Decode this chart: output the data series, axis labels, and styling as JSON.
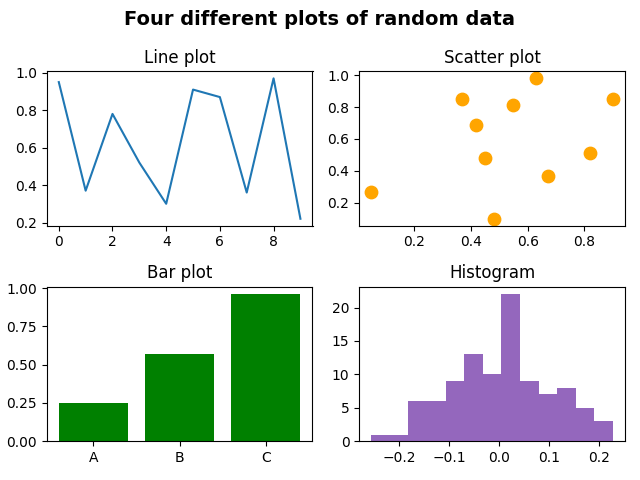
{
  "title": "Four different plots of random data",
  "line_plot": {
    "title": "Line plot",
    "x": [
      0,
      1,
      2,
      3,
      4,
      5,
      6,
      7,
      8,
      9
    ],
    "y": [
      0.95,
      0.37,
      0.78,
      0.52,
      0.3,
      0.91,
      0.87,
      0.36,
      0.97,
      0.22
    ],
    "color": "#1f77b4"
  },
  "scatter_plot": {
    "title": "Scatter plot",
    "x": [
      0.05,
      0.37,
      0.42,
      0.45,
      0.48,
      0.55,
      0.63,
      0.67,
      0.82,
      0.9
    ],
    "y": [
      0.27,
      0.85,
      0.69,
      0.48,
      0.1,
      0.81,
      0.98,
      0.37,
      0.51,
      0.85
    ],
    "color": "orange",
    "marker_size": 80
  },
  "bar_plot": {
    "title": "Bar plot",
    "categories": [
      "A",
      "B",
      "C"
    ],
    "values": [
      0.25,
      0.57,
      0.96
    ],
    "color": "green"
  },
  "histogram": {
    "title": "Histogram",
    "color": "#9467bd",
    "seed": 0,
    "n_samples": 100,
    "bins": 13,
    "std": 0.1
  },
  "fig_title_fontsize": 14,
  "subplot_title_fontsize": 12
}
